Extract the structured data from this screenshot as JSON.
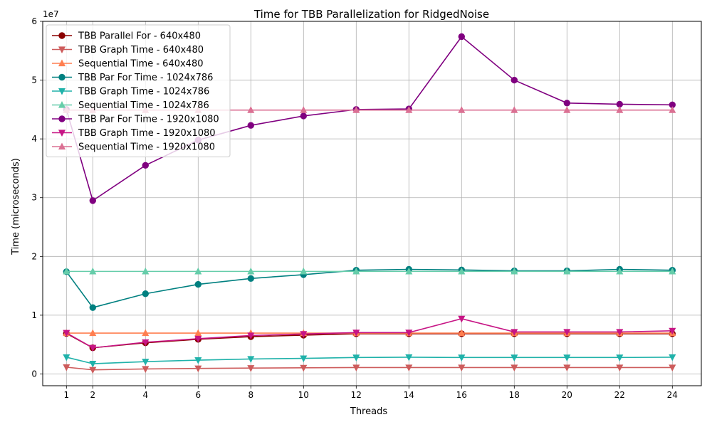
{
  "chart_data": {
    "type": "line",
    "title": "Time for TBB Parallelization for RidgedNoise",
    "xlabel": "Threads",
    "ylabel": "Time (microseconds)",
    "y_offset_label": "1e7",
    "x": [
      1,
      2,
      4,
      6,
      8,
      10,
      12,
      14,
      16,
      18,
      20,
      22,
      24
    ],
    "xticks": [
      "1",
      "2",
      "4",
      "6",
      "8",
      "10",
      "12",
      "14",
      "16",
      "18",
      "20",
      "22",
      "24"
    ],
    "xlim": [
      0.1,
      25.1
    ],
    "ylim": [
      -2000000,
      60000000
    ],
    "yticks": [
      0,
      10000000,
      20000000,
      30000000,
      40000000,
      50000000,
      60000000
    ],
    "ytick_labels": [
      "0",
      "1",
      "2",
      "3",
      "4",
      "5",
      "6"
    ],
    "grid": true,
    "legend_position": "upper-left",
    "series": [
      {
        "name": "TBB Parallel For - 640x480",
        "color": "#8b0000",
        "marker": "circle",
        "values": [
          6900000,
          4450000,
          5300000,
          5900000,
          6350000,
          6600000,
          6850000,
          6850000,
          6850000,
          6850000,
          6850000,
          6850000,
          6850000
        ]
      },
      {
        "name": "TBB Graph Time - 640x480",
        "color": "#cd5c5c",
        "marker": "triangle-down",
        "values": [
          1150000,
          700000,
          850000,
          950000,
          1000000,
          1050000,
          1100000,
          1100000,
          1100000,
          1100000,
          1100000,
          1100000,
          1100000
        ]
      },
      {
        "name": "Sequential Time - 640x480",
        "color": "#ff7f50",
        "marker": "triangle-up",
        "values": [
          6950000,
          6950000,
          6950000,
          6950000,
          6950000,
          6950000,
          6950000,
          6950000,
          6950000,
          6950000,
          6950000,
          6950000,
          6950000
        ]
      },
      {
        "name": "TBB Par For Time - 1024x786",
        "color": "#008080",
        "marker": "circle",
        "values": [
          17400000,
          11300000,
          13650000,
          15250000,
          16250000,
          16900000,
          17650000,
          17800000,
          17700000,
          17550000,
          17550000,
          17800000,
          17650000
        ]
      },
      {
        "name": "TBB Graph Time - 1024x786",
        "color": "#20b2aa",
        "marker": "triangle-down",
        "values": [
          2850000,
          1750000,
          2100000,
          2350000,
          2550000,
          2650000,
          2800000,
          2850000,
          2800000,
          2800000,
          2800000,
          2800000,
          2850000
        ]
      },
      {
        "name": "Sequential Time - 1024x786",
        "color": "#66cdaa",
        "marker": "triangle-up",
        "values": [
          17450000,
          17450000,
          17450000,
          17450000,
          17450000,
          17450000,
          17450000,
          17450000,
          17450000,
          17450000,
          17450000,
          17450000,
          17450000
        ]
      },
      {
        "name": "TBB Par For Time - 1920x1080",
        "color": "#800080",
        "marker": "circle",
        "values": [
          45000000,
          29500000,
          35500000,
          39800000,
          42300000,
          43900000,
          45000000,
          45100000,
          57400000,
          50000000,
          46100000,
          45900000,
          45800000
        ]
      },
      {
        "name": "TBB Graph Time - 1920x1080",
        "color": "#c71585",
        "marker": "triangle-down",
        "values": [
          7000000,
          4450000,
          5400000,
          6000000,
          6550000,
          6800000,
          7050000,
          7050000,
          9400000,
          7150000,
          7150000,
          7150000,
          7350000
        ]
      },
      {
        "name": "Sequential Time - 1920x1080",
        "color": "#db7093",
        "marker": "triangle-up",
        "values": [
          44900000,
          44900000,
          44900000,
          44900000,
          44900000,
          44900000,
          44900000,
          44900000,
          44900000,
          44900000,
          44900000,
          44900000,
          44900000
        ]
      }
    ]
  }
}
